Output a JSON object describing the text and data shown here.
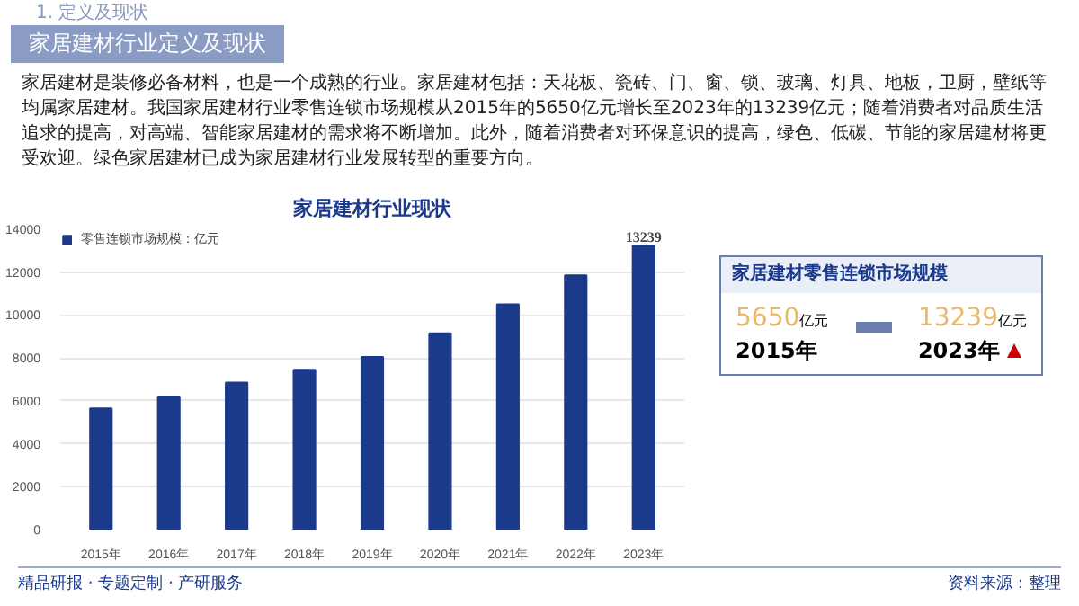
{
  "chart_data": {
    "type": "bar",
    "title": "家居建材行业现状",
    "categories": [
      "2015年",
      "2016年",
      "2017年",
      "2018年",
      "2019年",
      "2020年",
      "2021年",
      "2022年",
      "2023年"
    ],
    "series": [
      {
        "name": "零售连锁市场规模：亿元",
        "color": "#1b3a8c",
        "values": [
          5650,
          6200,
          6850,
          7450,
          8050,
          9150,
          10500,
          11850,
          13239
        ],
        "value_labels": [
          null,
          null,
          null,
          null,
          null,
          null,
          null,
          null,
          "13239"
        ]
      }
    ],
    "ylim": [
      0,
      14000
    ],
    "yticks": [
      0,
      2000,
      4000,
      6000,
      8000,
      10000,
      12000,
      14000
    ],
    "grid": "y",
    "legend": "top left",
    "annotations": [
      "1. 定义及现状",
      "家居建材行业定义及现状",
      "家居建材是装修必备材料，也是一个成熟的行业。家居建材包括：天花板、瓷砖、门、窗、锁、玻璃、灯具、地板，卫厨，壁纸等均属家居建材。我国家居建材行业零售连锁市场规模从2015年的5650亿元增长至2023年的13239亿元；随着消费者对品质生活追求的提高，对高端、智能家居建材的需求将不断增加。此外，随着消费者对环保意识的提高，绿色、低碳、节能的家居建材将更受欢迎。绿色家居建材已成为家居建材行业发展转型的重要方向。",
      "家居建材零售连锁市场规模",
      "5650",
      "亿元",
      "2015年",
      "13239",
      "亿元",
      "2023年",
      "精品研报 · 专题定制 · 产研服务",
      "资料来源：整理"
    ]
  }
}
